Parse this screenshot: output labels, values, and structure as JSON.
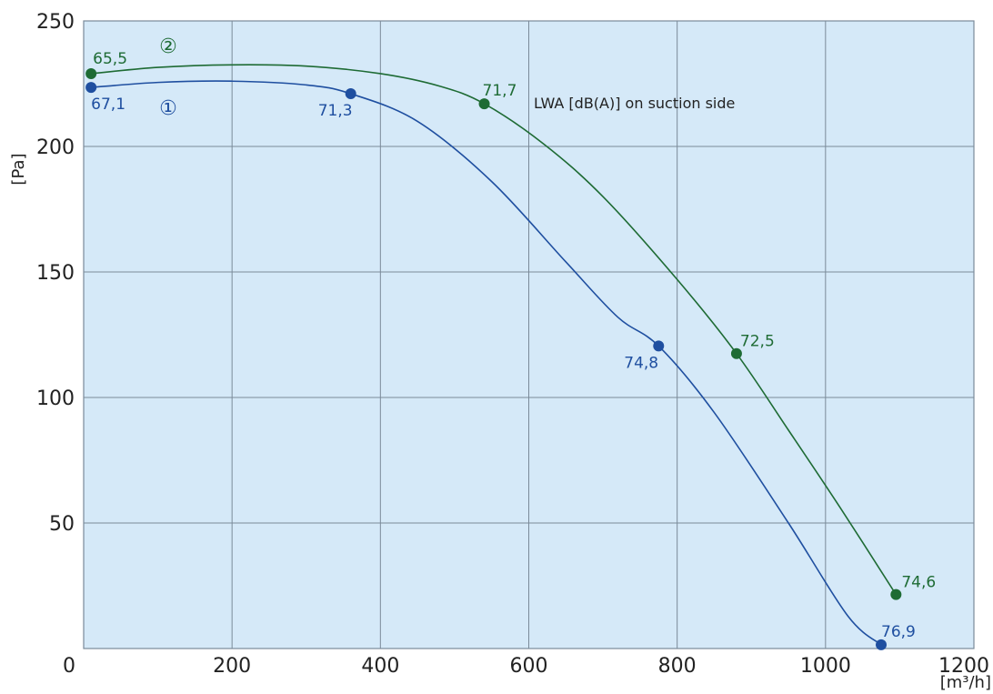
{
  "chart_data": {
    "type": "line",
    "xlabel": "[m³/h]",
    "ylabel": "[Pa]",
    "xlim": [
      0,
      1200
    ],
    "ylim": [
      0,
      250
    ],
    "x_ticks": [
      "0",
      "200",
      "400",
      "600",
      "800",
      "1000",
      "1200"
    ],
    "y_ticks": [
      "0",
      "50",
      "100",
      "150",
      "200",
      "250"
    ],
    "x_tick_values": [
      0,
      200,
      400,
      600,
      800,
      1000,
      1200
    ],
    "y_tick_values": [
      0,
      50,
      100,
      150,
      200,
      250
    ],
    "grid": true,
    "annotation": "LWA [dB(A)] on suction side",
    "series": [
      {
        "name": "①",
        "color": "#1f4fa0",
        "curve": [
          [
            10,
            223.5
          ],
          [
            100,
            225.5
          ],
          [
            200,
            226
          ],
          [
            300,
            224.5
          ],
          [
            360,
            221
          ],
          [
            450,
            210
          ],
          [
            550,
            186
          ],
          [
            650,
            154
          ],
          [
            720,
            132
          ],
          [
            775,
            120.5
          ],
          [
            850,
            94
          ],
          [
            950,
            50
          ],
          [
            1030,
            13
          ],
          [
            1075,
            1.5
          ]
        ],
        "points": [
          {
            "x": 10,
            "y": 223.5,
            "label": "67,1"
          },
          {
            "x": 360,
            "y": 221,
            "label": "71,3"
          },
          {
            "x": 775,
            "y": 120.5,
            "label": "74,8"
          },
          {
            "x": 1075,
            "y": 1.5,
            "label": "76,9"
          }
        ]
      },
      {
        "name": "②",
        "color": "#1e6b34",
        "curve": [
          [
            10,
            229
          ],
          [
            100,
            231.5
          ],
          [
            200,
            232.5
          ],
          [
            300,
            232
          ],
          [
            400,
            229
          ],
          [
            480,
            224
          ],
          [
            540,
            217
          ],
          [
            620,
            201
          ],
          [
            700,
            180
          ],
          [
            800,
            147
          ],
          [
            880,
            117.5
          ],
          [
            950,
            87
          ],
          [
            1020,
            56
          ],
          [
            1095,
            21.5
          ]
        ],
        "points": [
          {
            "x": 10,
            "y": 229,
            "label": "65,5"
          },
          {
            "x": 540,
            "y": 217,
            "label": "71,7"
          },
          {
            "x": 880,
            "y": 117.5,
            "label": "72,5"
          },
          {
            "x": 1095,
            "y": 21.5,
            "label": "74,6"
          }
        ]
      }
    ]
  }
}
